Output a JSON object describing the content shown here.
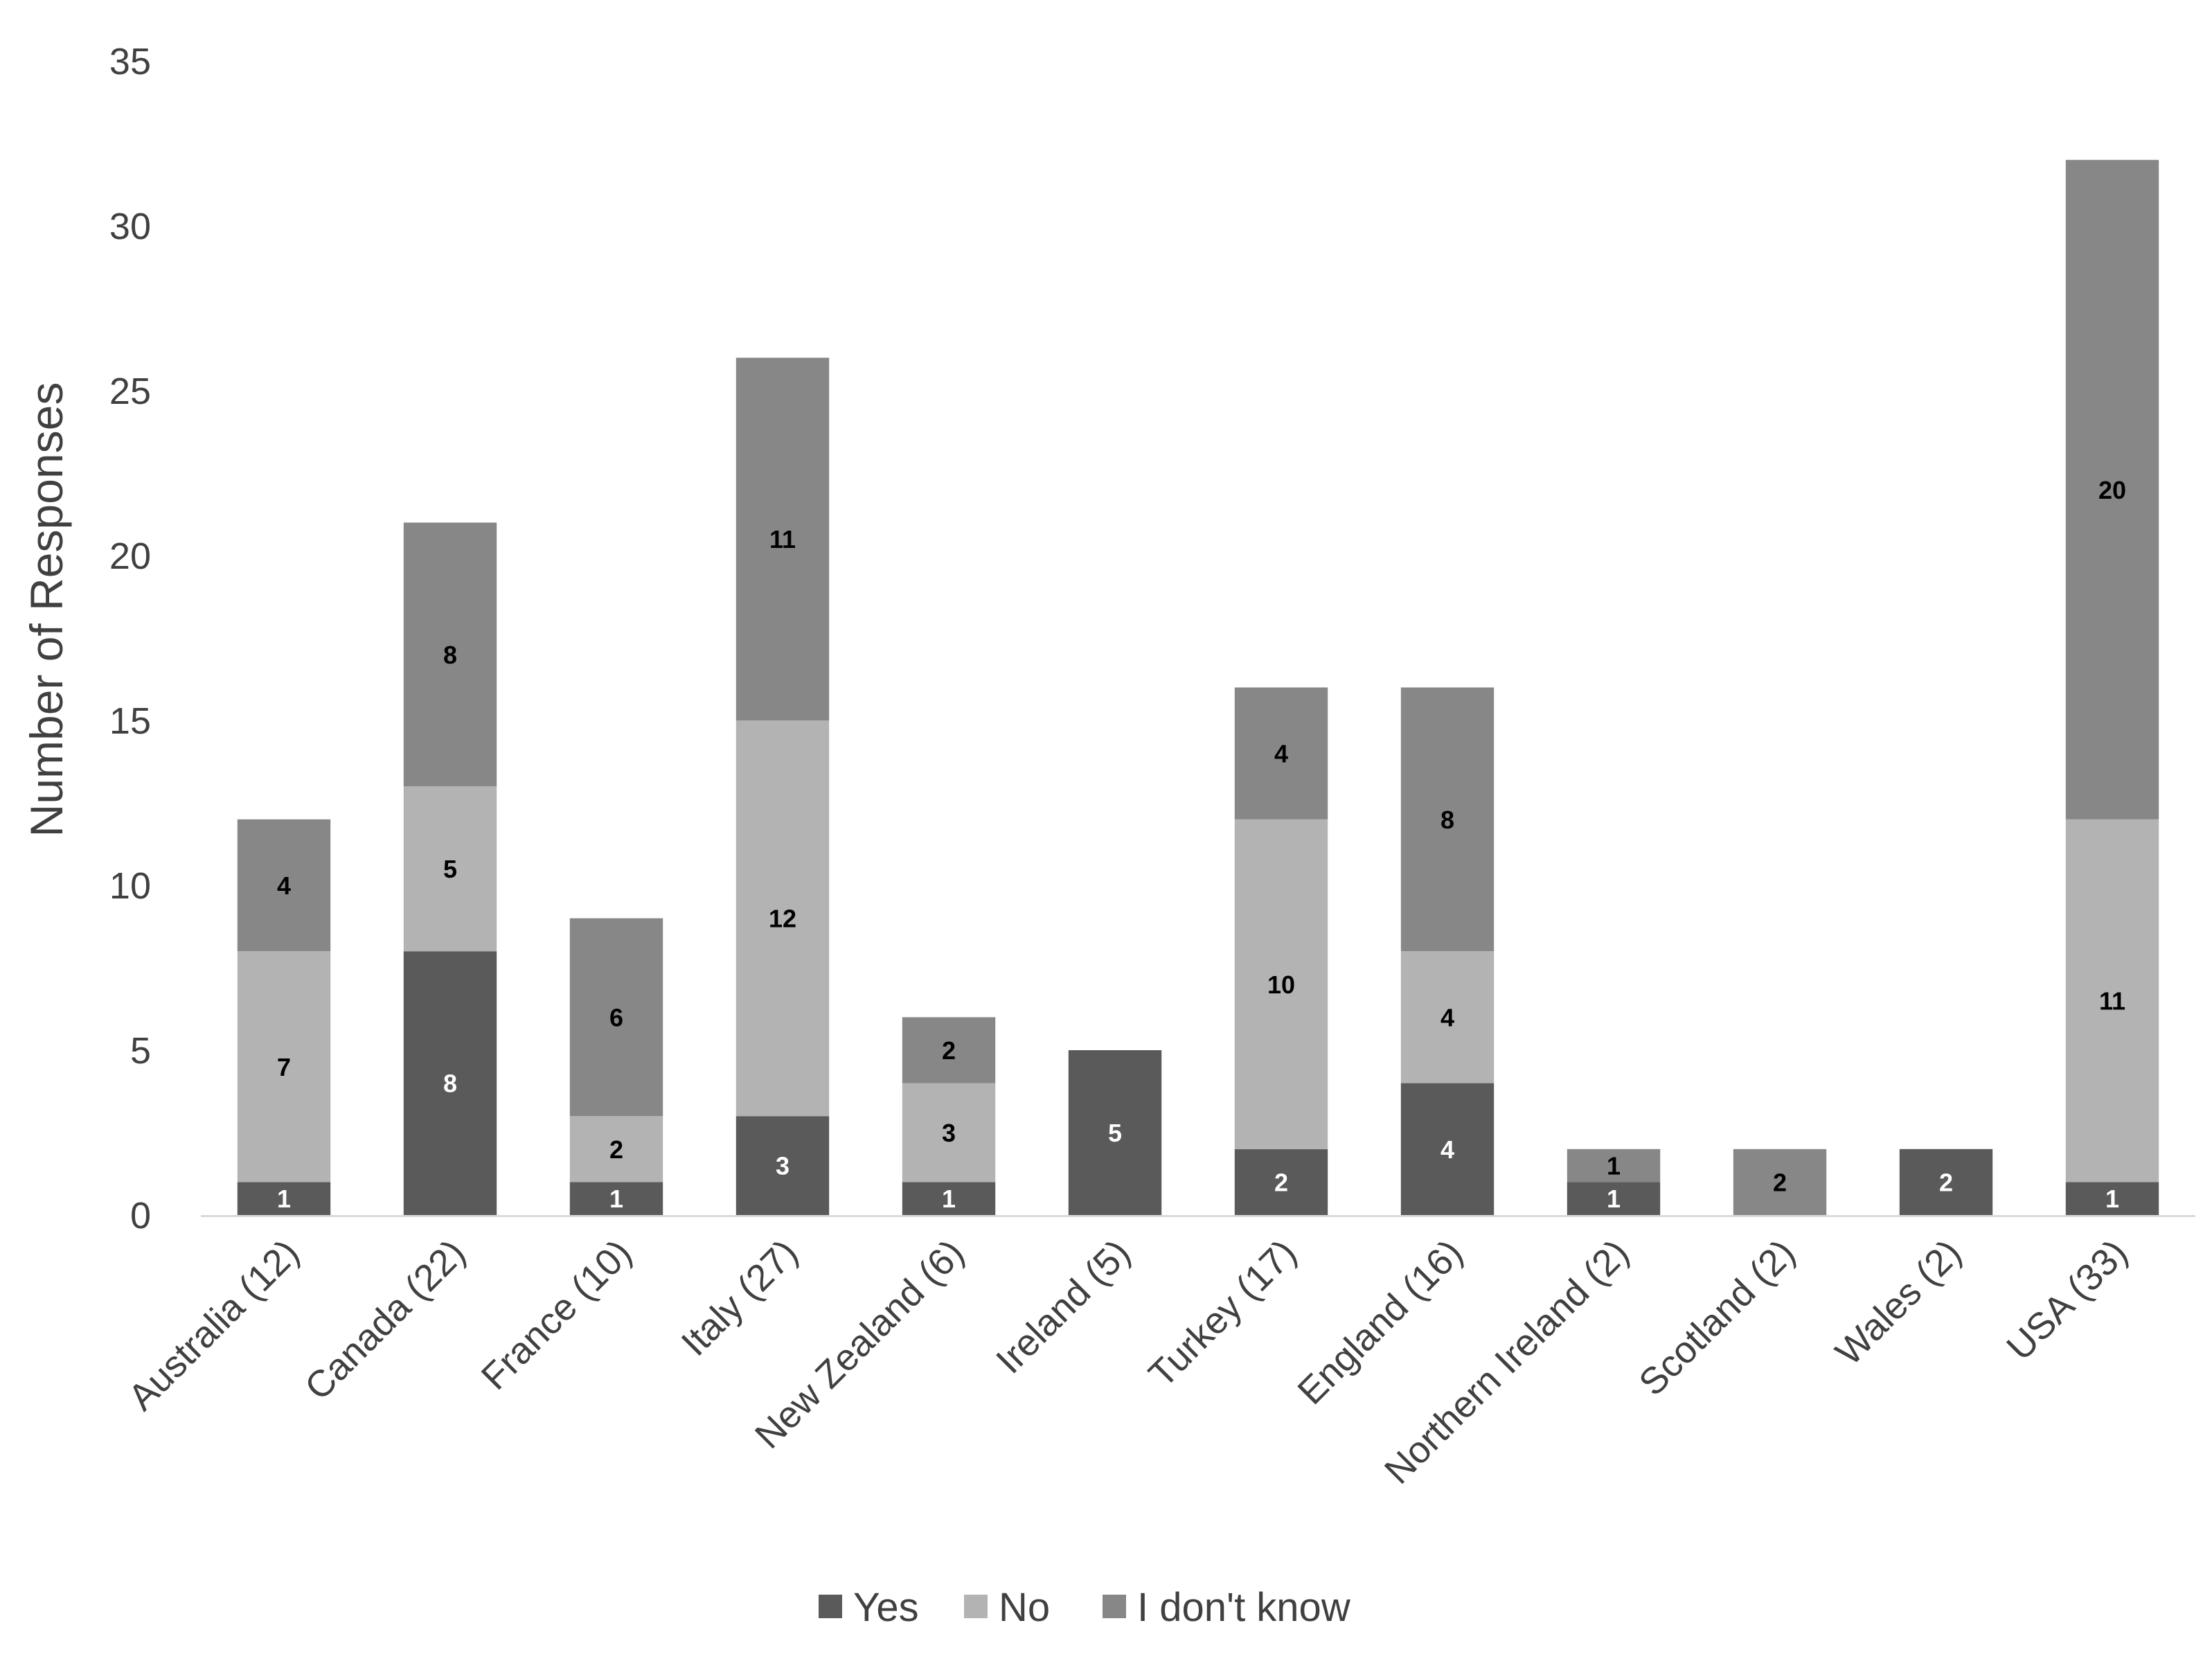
{
  "chart_data": {
    "type": "bar",
    "stacked": true,
    "title": "",
    "xlabel": "",
    "ylabel": "Number of Responses",
    "ylim": [
      0,
      35
    ],
    "yticks": [
      0,
      5,
      10,
      15,
      20,
      25,
      30,
      35
    ],
    "grid": false,
    "legend_position": "bottom",
    "categories": [
      "Australia (12)",
      "Canada (22)",
      "France (10)",
      "Italy (27)",
      "New Zealand (6)",
      "Ireland (5)",
      "Turkey (17)",
      "England (16)",
      "Northern Ireland (2)",
      "Scotland (2)",
      "Wales (2)",
      "USA (33)"
    ],
    "series": [
      {
        "name": "Yes",
        "color": "#5a5a5a",
        "label_color": "#ffffff",
        "values": [
          1,
          8,
          1,
          3,
          1,
          5,
          2,
          4,
          1,
          0,
          2,
          1
        ]
      },
      {
        "name": "No",
        "color": "#b3b3b3",
        "label_color": "#000000",
        "values": [
          7,
          5,
          2,
          12,
          3,
          0,
          10,
          4,
          0,
          0,
          0,
          11
        ]
      },
      {
        "name": "I don't know",
        "color": "#878787",
        "label_color": "#000000",
        "values": [
          4,
          8,
          6,
          11,
          2,
          0,
          4,
          8,
          1,
          2,
          0,
          20
        ]
      }
    ]
  }
}
